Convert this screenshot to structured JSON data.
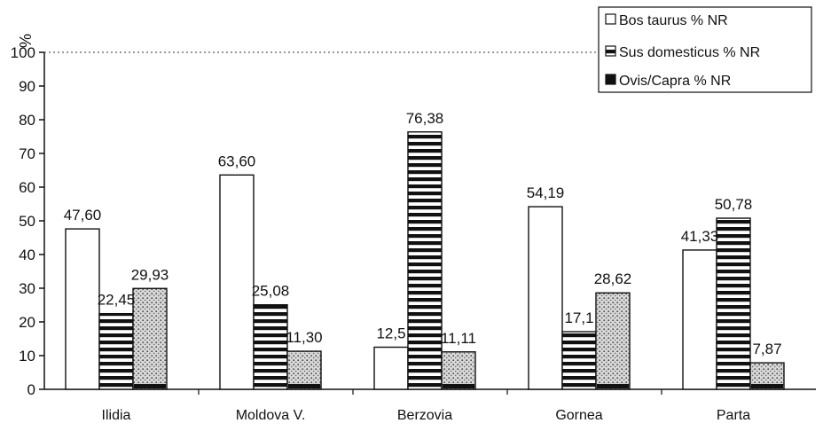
{
  "chart_data": {
    "type": "bar",
    "ylabel": "%",
    "xlabel": "",
    "ylim": [
      0,
      100
    ],
    "yticks": [
      0,
      10,
      20,
      30,
      40,
      50,
      60,
      70,
      80,
      90,
      100
    ],
    "grid": false,
    "legend_position": "top-right",
    "categories": [
      "Ilidia",
      "Moldova V.",
      "Berzovia",
      "Gornea",
      "Parta"
    ],
    "series": [
      {
        "name": "Bos taurus % NR",
        "pattern": "white",
        "values": [
          47.6,
          63.6,
          12.5,
          54.19,
          41.33
        ],
        "labels": [
          "47,60",
          "63,60",
          "12,5",
          "54,19",
          "41,33"
        ]
      },
      {
        "name": "Sus domesticus % NR",
        "pattern": "horizontal-stripes",
        "values": [
          22.45,
          25.08,
          76.38,
          17.1,
          50.78
        ],
        "labels": [
          "22,45",
          "25,08",
          "76,38",
          "17,1",
          "50,78"
        ]
      },
      {
        "name": "Ovis/Capra % NR",
        "pattern": "dotted",
        "values": [
          29.93,
          11.3,
          11.11,
          28.62,
          7.87
        ],
        "labels": [
          "29,93",
          "11,30",
          "11,11",
          "28,62",
          "7,87"
        ]
      }
    ]
  },
  "colors": {
    "axis": "#111111",
    "bar_stroke": "#111111",
    "stripe": "#111111",
    "dots": "#555555"
  }
}
